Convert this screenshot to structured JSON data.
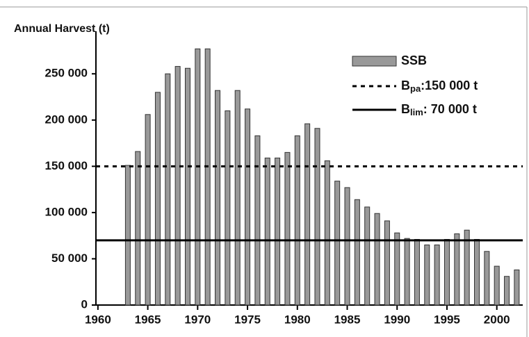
{
  "chart_data": {
    "type": "bar",
    "y_label": "Annual Harvest (t)",
    "x": [
      1963,
      1964,
      1965,
      1966,
      1967,
      1968,
      1969,
      1970,
      1971,
      1972,
      1973,
      1974,
      1975,
      1976,
      1977,
      1978,
      1979,
      1980,
      1981,
      1982,
      1983,
      1984,
      1985,
      1986,
      1987,
      1988,
      1989,
      1990,
      1991,
      1992,
      1993,
      1994,
      1995,
      1996,
      1997,
      1998,
      1999,
      2000,
      2001,
      2002
    ],
    "series": [
      {
        "name": "SSB",
        "color": "#999999",
        "values": [
          151000,
          166000,
          206000,
          230000,
          250000,
          258000,
          256000,
          277000,
          277000,
          232000,
          210000,
          232000,
          212000,
          183000,
          159000,
          159000,
          165000,
          183000,
          196000,
          191000,
          156000,
          134000,
          127000,
          114000,
          106000,
          99000,
          91000,
          78000,
          72000,
          71000,
          65000,
          65000,
          71000,
          77000,
          81000,
          71000,
          58000,
          42000,
          31000,
          38000
        ]
      }
    ],
    "reference_lines": [
      {
        "value": 150000,
        "style": "dashed",
        "label": "B",
        "label_sub": "pa",
        "label_rest": ":150 000 t"
      },
      {
        "value": 70000,
        "style": "solid",
        "label": "B",
        "label_sub": "lim",
        "label_rest": ": 70 000 t"
      }
    ],
    "xlim": [
      1959.8,
      2002.6
    ],
    "ylim": [
      0,
      296000
    ],
    "xticks": [
      1960,
      1965,
      1970,
      1975,
      1980,
      1985,
      1990,
      1995,
      2000
    ],
    "yticks": [
      0,
      {
        "value": 50000,
        "label": "50 000"
      },
      {
        "value": 100000,
        "label": "100 000"
      },
      {
        "value": 150000,
        "label": "150 000"
      },
      {
        "value": 200000,
        "label": "200 000"
      },
      {
        "value": 250000,
        "label": "250 000"
      }
    ]
  }
}
